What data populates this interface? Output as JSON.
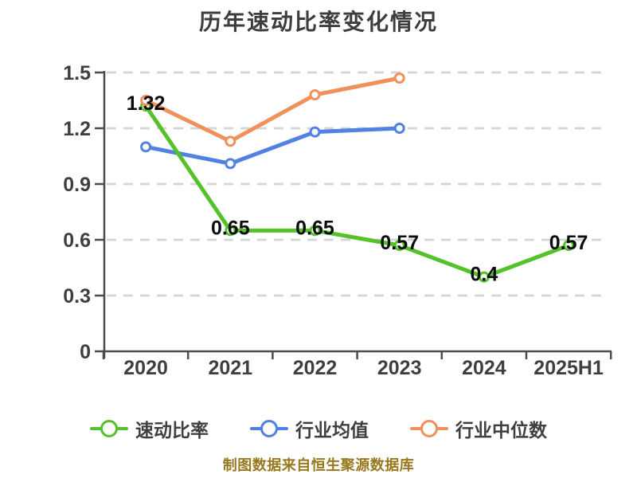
{
  "title": "历年速动比率变化情况",
  "footer": "制图数据来自恒生聚源数据库",
  "colors": {
    "quick_ratio": "#55c12b",
    "industry_average": "#5181e2",
    "industry_median": "#f0915c",
    "grid": "#d5d5d5",
    "axis": "#4c4c4c",
    "tick_label": "#3f3f3f",
    "data_label": "#0b0b0b",
    "title": "#3d3d3d",
    "footer": "#99791f"
  },
  "chart_data": {
    "type": "line",
    "title": "历年速动比率变化情况",
    "categories": [
      "2020",
      "2021",
      "2022",
      "2023",
      "2024",
      "2025H1"
    ],
    "series": [
      {
        "name": "速动比率",
        "color": "#55c12b",
        "values": [
          1.32,
          0.65,
          0.65,
          0.57,
          0.4,
          0.57
        ],
        "point_labels": [
          "1.32",
          "0.65",
          "0.65",
          "0.57",
          "0.4",
          "0.57"
        ]
      },
      {
        "name": "行业均值",
        "color": "#5181e2",
        "values": [
          1.1,
          1.01,
          1.18,
          1.2,
          null,
          null
        ],
        "point_labels": null
      },
      {
        "name": "行业中位数",
        "color": "#f0915c",
        "values": [
          1.35,
          1.13,
          1.38,
          1.47,
          null,
          null
        ],
        "point_labels": null
      }
    ],
    "ylim": [
      0,
      1.5
    ],
    "yticks": [
      0,
      0.3,
      0.6,
      0.9,
      1.2,
      1.5
    ],
    "ytick_labels": [
      "0",
      "0.3",
      "0.6",
      "0.9",
      "1.2",
      "1.5"
    ],
    "xlabel": "",
    "ylabel": "",
    "grid": "horizontal-dashed",
    "legend_position": "bottom",
    "marker": "hollow-circle"
  },
  "legend": {
    "items": [
      {
        "label": "速动比率"
      },
      {
        "label": "行业均值"
      },
      {
        "label": "行业中位数"
      }
    ]
  }
}
